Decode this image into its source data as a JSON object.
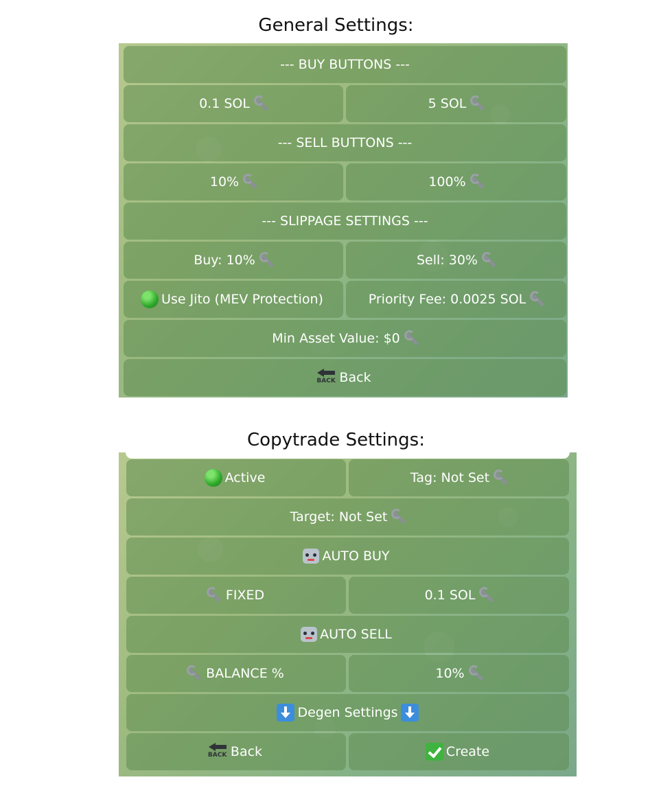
{
  "general": {
    "title": "General Settings:",
    "buy_header": "--- BUY BUTTONS ---",
    "buy_1": "0.1 SOL",
    "buy_2": "5 SOL",
    "sell_header": "--- SELL BUTTONS ---",
    "sell_1": "10%",
    "sell_2": "100%",
    "slippage_header": "--- SLIPPAGE SETTINGS ---",
    "slippage_buy": "Buy: 10%",
    "slippage_sell": "Sell: 30%",
    "jito": "Use Jito (MEV Protection)",
    "priority_fee": "Priority Fee: 0.0025 SOL",
    "min_asset": "Min Asset Value: $0",
    "back": "Back",
    "back_icon_text": "BACK"
  },
  "copytrade": {
    "title": "Copytrade Settings:",
    "active": "Active",
    "tag": "Tag: Not Set",
    "target": "Target: Not Set",
    "auto_buy": "AUTO BUY",
    "fixed": "FIXED",
    "amount": "0.1 SOL",
    "auto_sell": "AUTO SELL",
    "balance": "BALANCE %",
    "sell_percent": "10%",
    "degen": "Degen Settings",
    "back": "Back",
    "back_icon_text": "BACK",
    "create": "Create"
  },
  "colors": {
    "button_text": "#ffffff",
    "status_green": "#2ea82a",
    "create_check": "#3fb33f"
  }
}
